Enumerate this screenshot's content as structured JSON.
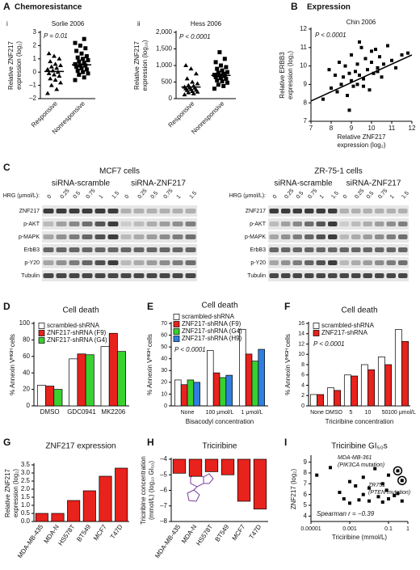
{
  "chart_data": [
    {
      "type": "strip",
      "panel": "A",
      "panel_title": "Chemoresistance",
      "subpanel": "i",
      "title": "Sorlie 2006",
      "annotations": [
        "P = 0.01"
      ],
      "ylabel": [
        "Relative ZNF217",
        "expression (log₂)"
      ],
      "categories": [
        "Responsive",
        "Nonresponsive"
      ],
      "markers": [
        "triangle",
        "square"
      ],
      "values": [
        [
          -1.6,
          -1.3,
          -1.0,
          -0.8,
          -0.6,
          -0.5,
          -0.3,
          -0.2,
          -0.1,
          0,
          0.1,
          0.2,
          0.3,
          0.4,
          0.5,
          0.6,
          0.8,
          1.0,
          1.2,
          1.4
        ],
        [
          -0.6,
          -0.4,
          -0.2,
          -0.1,
          0,
          0.1,
          0.2,
          0.3,
          0.4,
          0.5,
          0.5,
          0.6,
          0.7,
          0.8,
          0.9,
          1.0,
          1.1,
          1.2,
          1.4,
          1.6,
          1.8,
          2.0,
          2.2,
          2.5
        ]
      ],
      "means": [
        0.05,
        0.55
      ],
      "ylim": [
        -2,
        3
      ],
      "yticks": [
        {
          "value": -2,
          "label": "–2"
        },
        {
          "value": -1,
          "label": "–1"
        },
        0,
        1,
        2,
        3
      ]
    },
    {
      "type": "strip",
      "subpanel": "ii",
      "title": "Hess 2006",
      "annotations": [
        "P < 0.0001"
      ],
      "ylabel": [
        "Relative ZNF217",
        "expression (log₁₀)"
      ],
      "categories": [
        "Responsive",
        "Nonresponsive"
      ],
      "markers": [
        "triangle",
        "square"
      ],
      "values": [
        [
          120,
          150,
          180,
          200,
          220,
          250,
          260,
          280,
          300,
          320,
          330,
          350,
          380,
          400,
          450,
          500,
          600,
          750,
          900,
          1000
        ],
        [
          300,
          380,
          420,
          480,
          520,
          550,
          600,
          620,
          650,
          680,
          700,
          720,
          750,
          780,
          800,
          850,
          900,
          950,
          1000,
          1100,
          1200,
          1400
        ]
      ],
      "means": [
        350,
        700
      ],
      "ylim": [
        0,
        2000
      ],
      "yticks": [
        0,
        500,
        {
          "value": 1000,
          "label": "1,000"
        },
        {
          "value": 1500,
          "label": "1,500"
        },
        {
          "value": 2000,
          "label": "2,000"
        }
      ]
    },
    {
      "type": "scatter",
      "panel": "B",
      "panel_title": "Expression",
      "title": "Chin 2006",
      "annotations": [
        "P < 0.0001"
      ],
      "xlabel": [
        "Relative ZNF217",
        "expression (log₂)"
      ],
      "ylabel": [
        "Relative ERBB3",
        "expression (log₂)"
      ],
      "x": [
        7.6,
        7.9,
        8.0,
        8.2,
        8.3,
        8.4,
        8.5,
        8.6,
        8.7,
        8.8,
        8.9,
        9.0,
        9.0,
        9.1,
        9.2,
        9.3,
        9.3,
        9.4,
        9.5,
        9.6,
        9.7,
        9.8,
        9.9,
        10.0,
        10.1,
        10.2,
        10.3,
        10.4,
        10.5,
        10.6,
        10.8,
        11.0,
        11.2,
        11.5,
        11.8,
        8.9,
        9.4,
        9.6,
        10.0,
        10.3
      ],
      "y": [
        8.2,
        9.8,
        8.8,
        9.5,
        8.6,
        10.2,
        9.0,
        9.4,
        10.0,
        8.4,
        9.6,
        9.2,
        10.6,
        8.9,
        9.7,
        10.1,
        9.0,
        9.5,
        11.0,
        9.3,
        10.4,
        9.8,
        8.7,
        10.2,
        9.6,
        10.9,
        9.9,
        10.5,
        9.4,
        10.1,
        11.1,
        10.3,
        9.9,
        10.6,
        10.7,
        7.6,
        11.3,
        8.9,
        10.8,
        9.7
      ],
      "trend": {
        "x": [
          7,
          12
        ],
        "y": [
          8.1,
          10.6
        ]
      },
      "xlim": [
        7,
        12
      ],
      "xticks": [
        7,
        8,
        9,
        10,
        11,
        12
      ],
      "ylim": [
        7,
        12
      ],
      "yticks": [
        7,
        8,
        9,
        10,
        11,
        12
      ]
    },
    {
      "type": "bar",
      "panel": "D",
      "title": "Cell death",
      "ylabel": [
        "% Annexin Vᴴᴵᴳᴴ cells"
      ],
      "categories": [
        "DMSO",
        "GDC0941",
        "MK2206"
      ],
      "series": [
        {
          "name": "scrambled-shRNA",
          "color": "#ffffff",
          "values": [
            25,
            57,
            72
          ]
        },
        {
          "name": "ZNF217-shRNA (F9)",
          "color": "#e8221c",
          "values": [
            24,
            63,
            88
          ]
        },
        {
          "name": "ZNF217-shRNA (G4)",
          "color": "#39d12f",
          "values": [
            20,
            62,
            66
          ]
        }
      ],
      "ylim": [
        0,
        100
      ],
      "yticks": [
        0,
        20,
        40,
        60,
        80,
        100
      ],
      "legend": "upper left"
    },
    {
      "type": "bar",
      "panel": "E",
      "title": "Cell death",
      "annotations": [
        "P < 0.0001"
      ],
      "ylabel": [
        "% Annexin Vᴴᴵᴳᴴ cells"
      ],
      "xlabel": [
        "Bisacodyl concentration"
      ],
      "categories": [
        "None",
        "100 μmol/L",
        "1 μmol/L"
      ],
      "series": [
        {
          "name": "scrambled-shRNA",
          "color": "#ffffff",
          "values": [
            22,
            47,
            65
          ]
        },
        {
          "name": "ZNF217-shRNA (F9)",
          "color": "#e8221c",
          "values": [
            18,
            28,
            44
          ]
        },
        {
          "name": "ZNF217-shRNA (G4)",
          "color": "#39d12f",
          "values": [
            22,
            24,
            38
          ]
        },
        {
          "name": "ZNF217-shRNA (H9)",
          "color": "#2f7fe0",
          "values": [
            20,
            26,
            48
          ]
        }
      ],
      "ylim": [
        0,
        70
      ],
      "yticks": [
        0,
        10,
        20,
        30,
        40,
        50,
        60,
        70
      ],
      "legend": "upper left"
    },
    {
      "type": "bar",
      "panel": "F",
      "title": "Cell death",
      "annotations": [
        "P < 0.0001"
      ],
      "ylabel": [
        "% Annexin Vᴴᴵᴳᴴ cells"
      ],
      "xlabel": [
        "Triciribine concentration"
      ],
      "categories": [
        "None",
        "DMSO",
        "5",
        "10",
        "50",
        "100 μmol/L"
      ],
      "series": [
        {
          "name": "scrambled-shRNA",
          "color": "#ffffff",
          "values": [
            2.2,
            3.5,
            6,
            8,
            9.5,
            14.8
          ]
        },
        {
          "name": "ZNF217-shRNA",
          "color": "#e8221c",
          "values": [
            2.2,
            3.0,
            5.8,
            7,
            8,
            12.5
          ]
        }
      ],
      "ylim": [
        0,
        16
      ],
      "yticks": [
        0,
        2,
        4,
        6,
        8,
        10,
        12,
        14,
        16
      ],
      "legend": "upper left"
    },
    {
      "type": "bar",
      "panel": "G",
      "title": "ZNF217 expression",
      "ylabel": [
        "Relative ZNF217",
        "expression (log₂)"
      ],
      "categories": [
        "MDA-MB-435",
        "MDA-N",
        "HS578T",
        "BT549",
        "MCF7",
        "T47D"
      ],
      "values": [
        0.5,
        0.5,
        1.3,
        1.9,
        2.8,
        3.3
      ],
      "color": "#e8221c",
      "ylim": [
        0,
        3.5
      ],
      "yticks": [
        {
          "value": 0,
          "label": "0.0"
        },
        0.5,
        {
          "value": 1,
          "label": "1.0"
        },
        1.5,
        {
          "value": 2,
          "label": "2.0"
        },
        2.5,
        {
          "value": 3,
          "label": "3.0"
        },
        3.5
      ]
    },
    {
      "type": "bar",
      "panel": "H",
      "title": "Triciribine",
      "ylabel": [
        "Triciribine concentration",
        "(mmol/L) (log₁₀ GI₅₀)"
      ],
      "categories": [
        "MDA-MB-435",
        "MDA-N",
        "HS578T",
        "BT549",
        "MCF7",
        "T47D"
      ],
      "values": [
        -4.9,
        -5.1,
        -4.8,
        -5.0,
        -6.7,
        -7.2
      ],
      "color": "#e8221c",
      "ylim": [
        -8,
        -4
      ],
      "yticks": [
        {
          "value": -4,
          "label": "–4"
        },
        {
          "value": -5,
          "label": "–5"
        },
        {
          "value": -6,
          "label": "–6"
        },
        {
          "value": -7,
          "label": "–7"
        },
        {
          "value": -8,
          "label": "–8"
        }
      ]
    },
    {
      "type": "scatter",
      "panel": "I",
      "title": "Triciribine GI₅₀s",
      "ylabel": [
        "ZNF217 (log₂)"
      ],
      "xlabel": [
        "Triciribine (mmol/L)"
      ],
      "xlog": true,
      "x": [
        2e-05,
        0.0001,
        0.0003,
        0.0005,
        0.001,
        0.001,
        0.002,
        0.003,
        0.005,
        0.005,
        0.01,
        0.01,
        0.02,
        0.03,
        0.05,
        0.05,
        0.08,
        0.1,
        0.1,
        0.2,
        0.3,
        0.5,
        0.3,
        0.5
      ],
      "y": [
        7.8,
        8.5,
        6.2,
        5.6,
        7.2,
        5.2,
        6.8,
        5.5,
        7.6,
        6.0,
        5.4,
        6.6,
        8.4,
        5.8,
        7.0,
        5.3,
        6.4,
        5.6,
        7.8,
        5.9,
        6.1,
        5.4,
        8.2,
        7.3
      ],
      "xlim": [
        1e-05,
        1
      ],
      "xticks": [
        {
          "value": 1e-05,
          "label": "0.00001"
        },
        0.001,
        0.1,
        1
      ],
      "ylim": [
        3.5,
        9.5
      ],
      "yticks": [
        4,
        5,
        6,
        7,
        8,
        9
      ],
      "annotations": [
        "MDA-MB-361",
        "(PIK3CA mutation)",
        "ZR751",
        "(PTEN mutation)",
        "Spearman r = −0.39"
      ]
    }
  ],
  "panel_c": {
    "panel": "C",
    "blots": [
      {
        "title": "MCF7 cells",
        "groups": [
          "siRNA-scramble",
          "siRNA-ZNF217"
        ],
        "dose_label": "HRG (μmol/L):",
        "doses": [
          0,
          0.25,
          0.5,
          0.75,
          1,
          1.5
        ],
        "rows": [
          "ZNF217",
          "p-AKT",
          "p-MAPK",
          "ErbB3",
          "p-Y20",
          "Tubulin"
        ]
      },
      {
        "title": "ZR-75-1 cells",
        "groups": [
          "siRNA-scramble",
          "siRNA-ZNF217"
        ],
        "dose_label": "HRG (μmol/L):",
        "doses": [
          0,
          0.25,
          0.5,
          0.75,
          1,
          1.5
        ],
        "rows": [
          "ZNF217",
          "p-AKT",
          "p-MAPK",
          "ErbB3",
          "p-Y20",
          "Tubulin"
        ]
      }
    ]
  }
}
